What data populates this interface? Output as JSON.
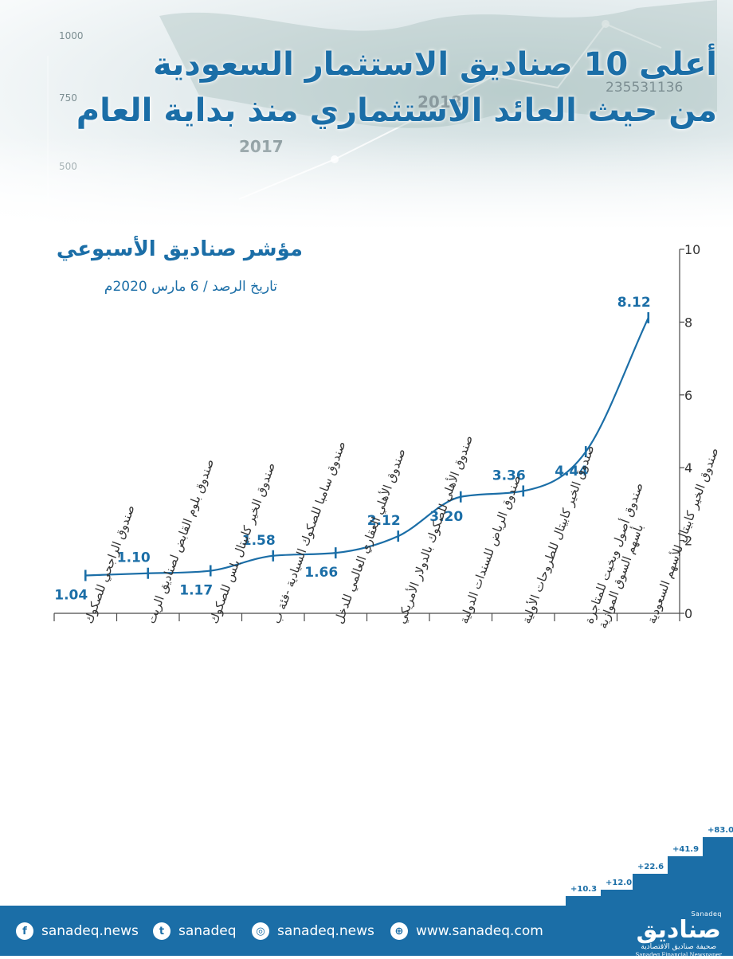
{
  "header": {
    "title_line1": "أعلى 10 صناديق الاستثمار السعودية",
    "title_line2": "من حيث العائد الاستثماري منذ بداية العام",
    "background_numbers": [
      "1000",
      "750",
      "500",
      "2018",
      "2017",
      "235531136"
    ]
  },
  "chart_header": {
    "title": "مؤشر صناديق الأسبوعي",
    "subtitle": "تاريخ الرصد / 6 مارس 2020م"
  },
  "chart_data": {
    "type": "line",
    "categories": [
      [
        "صندوق الراجحي للصكوك"
      ],
      [
        "صندوق بلوم القابض لصناديق الريت"
      ],
      [
        "صندوق الخير كابيتال بلس للصكوك"
      ],
      [
        "صندوق سامبا للصكوك السيادية -فئة ب"
      ],
      [
        "صندوق الأهلي العقاري العالمي للدخل"
      ],
      [
        "صندوق الأهلي للصكوك بالدولار الأمريكي"
      ],
      [
        "صندوق الرياض للسندات الدولية"
      ],
      [
        "صندوق الخير كابيتال للطروحات الأولية"
      ],
      [
        "صندوق أصول وبخيت للمتاجرة",
        "بأسهم السوق الموازية"
      ],
      [
        "صندوق الخير كابيتال للأسهم السعودية"
      ]
    ],
    "values": [
      1.04,
      1.1,
      1.17,
      1.58,
      1.66,
      2.12,
      3.2,
      3.36,
      4.44,
      8.12
    ],
    "value_labels": [
      "1.04",
      "1.10",
      "1.17",
      "1.58",
      "1.66",
      "2.12",
      "3.20",
      "3.36",
      "4.44",
      "8.12"
    ],
    "ylim": [
      0,
      10
    ],
    "yticks": [
      "0",
      "2",
      "4",
      "6",
      "8",
      "10"
    ],
    "y_axis_side": "right",
    "grid": false,
    "color": "#1b6ea7"
  },
  "footer": {
    "facebook": "sanadeq.news",
    "twitter": "sanadeq",
    "instagram": "sanadeq.news",
    "website": "www.sanadeq.com",
    "facebook_icon": "facebook-icon",
    "twitter_icon": "twitter-icon",
    "instagram_icon": "instagram-icon",
    "globe_icon": "globe-icon"
  },
  "brand": {
    "en_small": "Sanadeq",
    "ar_name": "صناديق",
    "ar_tagline": "صحيفة صناديق الاقتصادية",
    "en_tagline": "Sanadeq Financial Newspaper"
  },
  "steps": [
    "+10.3",
    "+12.0",
    "+22.6",
    "+41.9",
    "+83.0"
  ]
}
